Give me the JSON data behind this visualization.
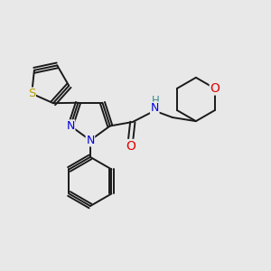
{
  "bg_color": "#e8e8e8",
  "bond_color": "#1a1a1a",
  "bond_width": 1.4,
  "atom_colors": {
    "S": "#b8a000",
    "N": "#0000e0",
    "O": "#e00000",
    "NH_H": "#3a8a8a",
    "NH_N": "#0000e0"
  },
  "figsize": [
    3.0,
    3.0
  ],
  "dpi": 100
}
